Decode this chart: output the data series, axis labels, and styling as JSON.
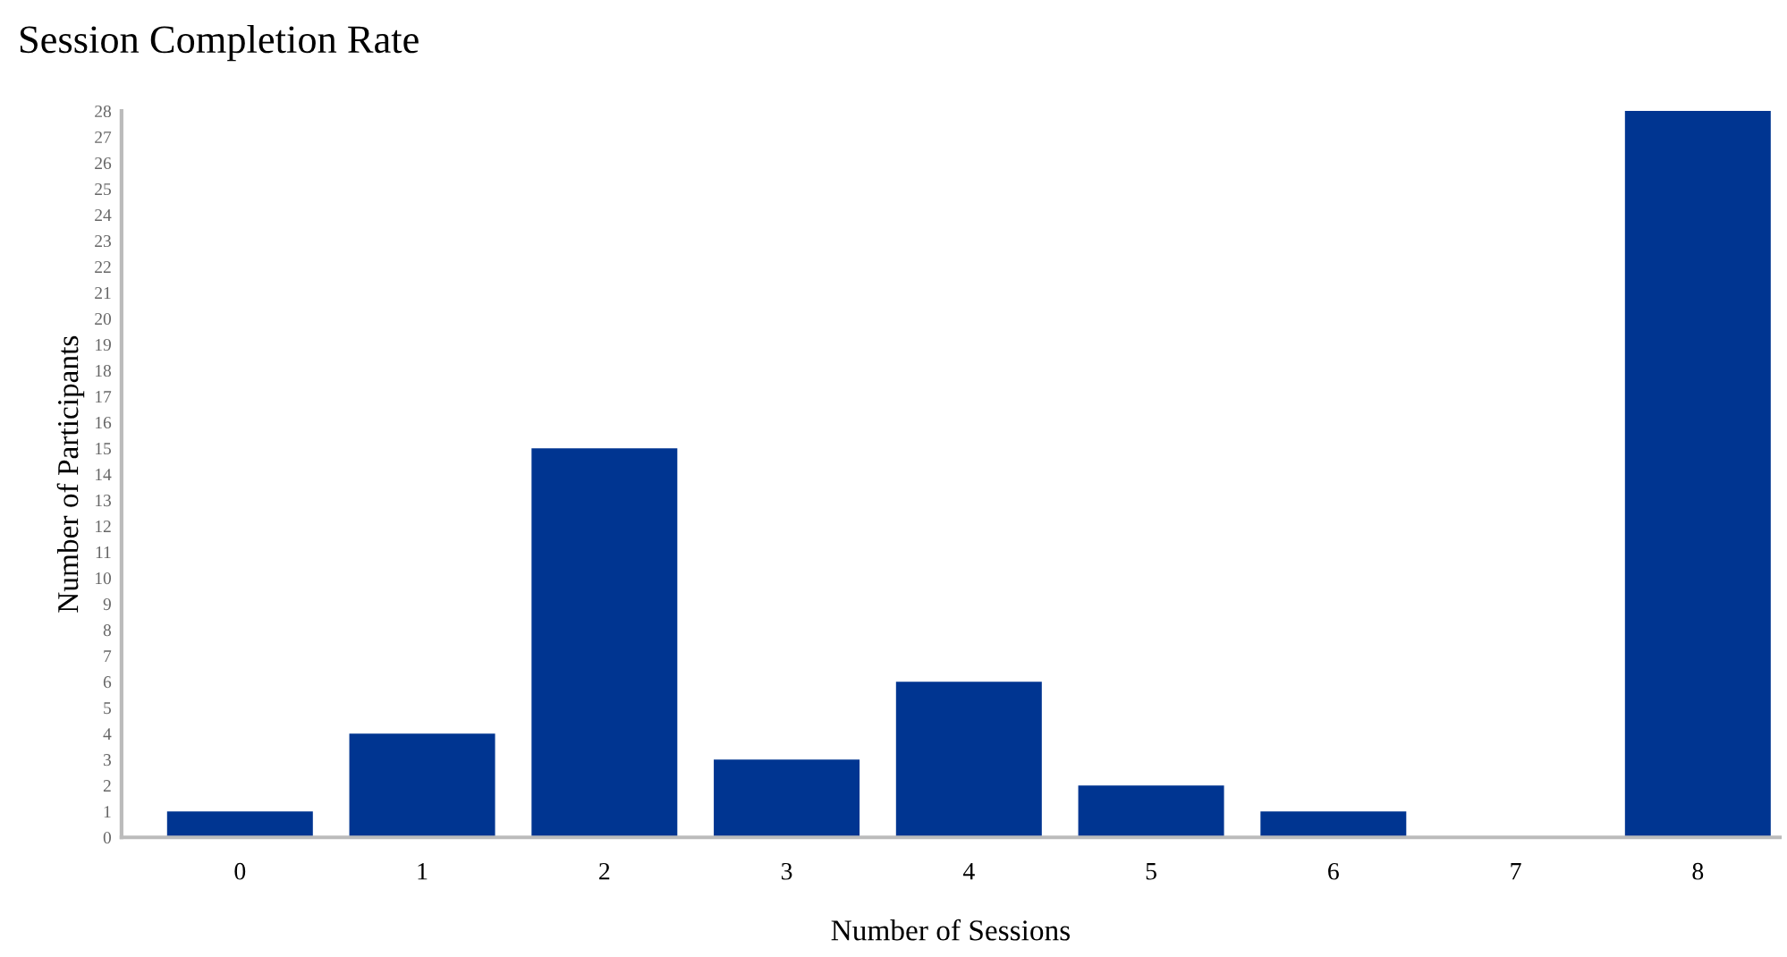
{
  "chart_data": {
    "type": "bar",
    "title": "Session Completion Rate",
    "xlabel": "Number of Sessions",
    "ylabel": "Number of Participants",
    "categories": [
      "0",
      "1",
      "2",
      "3",
      "4",
      "5",
      "6",
      "7",
      "8"
    ],
    "values": [
      1,
      4,
      15,
      3,
      6,
      2,
      1,
      0,
      28
    ],
    "color": "#003591",
    "ylim": [
      0,
      28
    ],
    "yticks": [
      0,
      1,
      2,
      3,
      4,
      5,
      6,
      7,
      8,
      9,
      10,
      11,
      12,
      13,
      14,
      15,
      16,
      17,
      18,
      19,
      20,
      21,
      22,
      23,
      24,
      25,
      26,
      27,
      28
    ],
    "grid": false,
    "legend": false
  }
}
